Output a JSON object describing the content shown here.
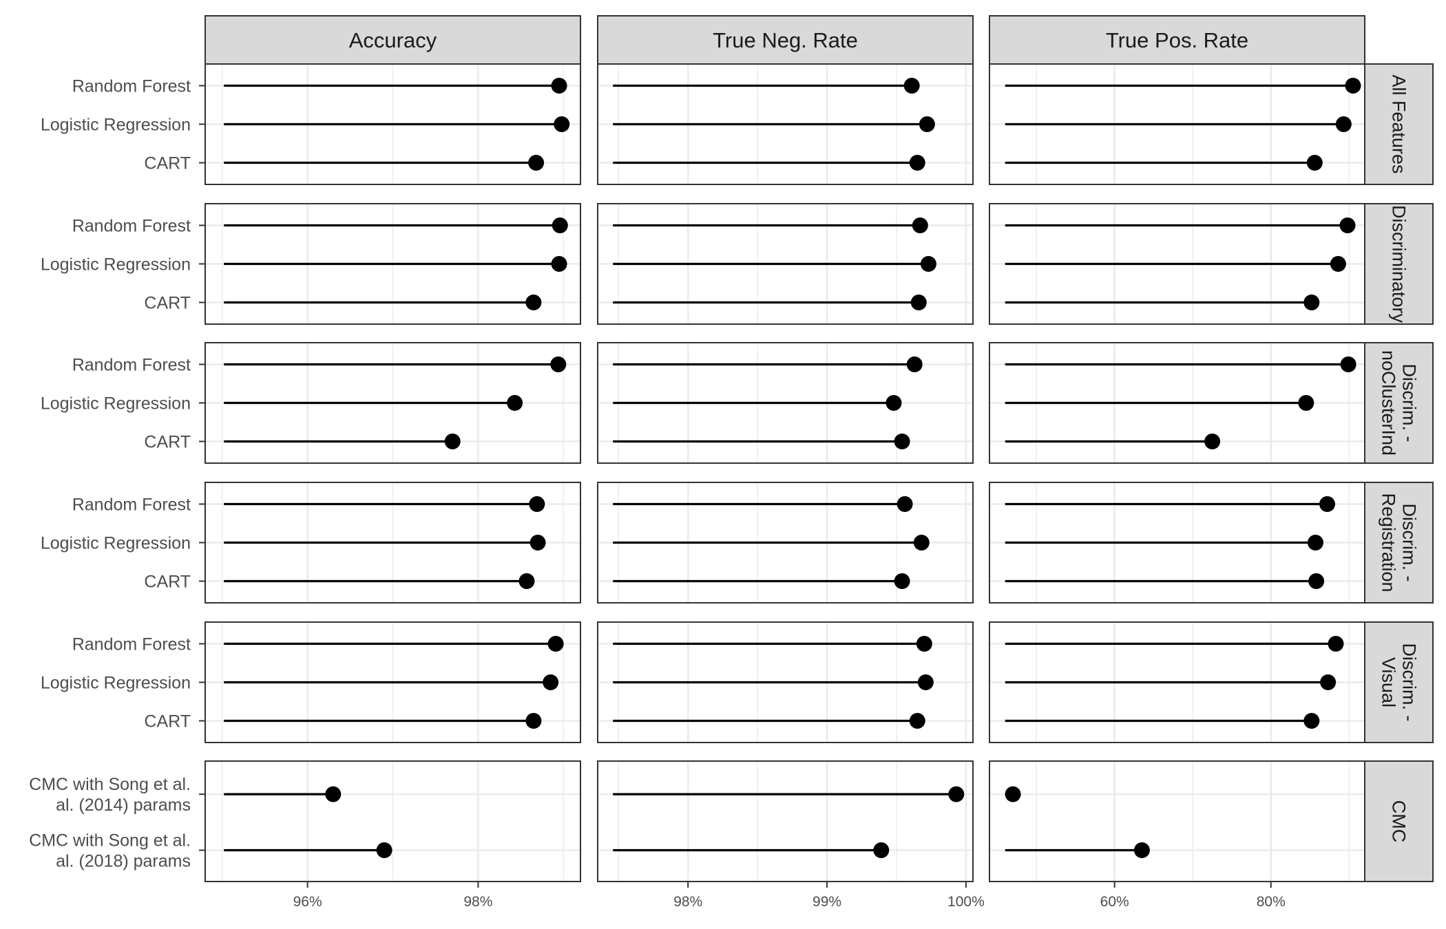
{
  "chart_data": {
    "type": "lollipop",
    "title": "",
    "xlabel": "",
    "ylabel": "",
    "columns": [
      {
        "name": "Accuracy",
        "xlim": [
          94.8,
          99.2
        ],
        "ticks": [
          96,
          98
        ],
        "tick_labels": [
          "96%",
          "98%"
        ],
        "baseline": 95.02,
        "grid": [
          95.0,
          96.0,
          97.0,
          98.0,
          99.0
        ]
      },
      {
        "name": "True Neg. Rate",
        "xlim": [
          97.35,
          100.05
        ],
        "ticks": [
          98,
          99,
          100
        ],
        "tick_labels": [
          "98%",
          "99%",
          "100%"
        ],
        "baseline": 97.46,
        "grid": [
          97.5,
          98.0,
          98.5,
          99.0,
          99.5,
          100.0
        ]
      },
      {
        "name": "True Pos. Rate",
        "xlim": [
          44.0,
          92.0
        ],
        "ticks": [
          60,
          80
        ],
        "tick_labels": [
          "60%",
          "80%"
        ],
        "baseline": 46.0,
        "grid": [
          50,
          60,
          70,
          80,
          90
        ]
      }
    ],
    "rows": [
      {
        "name": "All Features",
        "label_lines": [
          "All Features"
        ],
        "models": [
          "Random Forest",
          "Logistic Regression",
          "CART"
        ],
        "values": [
          [
            98.95,
            98.98,
            98.68
          ],
          [
            99.61,
            99.72,
            99.65
          ],
          [
            90.5,
            89.3,
            85.6
          ]
        ]
      },
      {
        "name": "Discriminatory",
        "label_lines": [
          "Discriminatory"
        ],
        "models": [
          "Random Forest",
          "Logistic Regression",
          "CART"
        ],
        "values": [
          [
            98.96,
            98.95,
            98.65
          ],
          [
            99.67,
            99.73,
            99.66
          ],
          [
            89.8,
            88.6,
            85.2
          ]
        ]
      },
      {
        "name": "Discrim. - noClusterInd",
        "label_lines": [
          "Discrim. -",
          "noClusterInd"
        ],
        "models": [
          "Random Forest",
          "Logistic Regression",
          "CART"
        ],
        "values": [
          [
            98.94,
            98.43,
            97.7
          ],
          [
            99.63,
            99.48,
            99.54
          ],
          [
            89.9,
            84.5,
            72.5
          ]
        ]
      },
      {
        "name": "Discrim. - Registration",
        "label_lines": [
          "Discrim. -",
          "Registration"
        ],
        "models": [
          "Random Forest",
          "Logistic Regression",
          "CART"
        ],
        "values": [
          [
            98.69,
            98.7,
            98.57
          ],
          [
            99.56,
            99.68,
            99.54
          ],
          [
            87.2,
            85.7,
            85.8
          ]
        ]
      },
      {
        "name": "Discrim. - Visual",
        "label_lines": [
          "Discrim. -",
          "Visual"
        ],
        "models": [
          "Random Forest",
          "Logistic Regression",
          "CART"
        ],
        "values": [
          [
            98.91,
            98.85,
            98.65
          ],
          [
            99.7,
            99.71,
            99.65
          ],
          [
            88.3,
            87.3,
            85.2
          ]
        ]
      },
      {
        "name": "CMC",
        "label_lines": [
          "CMC"
        ],
        "models": [
          "CMC with Song et al. (2014) params",
          "CMC with Song et al. (2018) params"
        ],
        "model_lines": [
          [
            "CMC with Song et al.",
            "al. (2014) params"
          ],
          [
            "CMC with Song et al.",
            "al. (2018) params"
          ]
        ],
        "values": [
          [
            96.3,
            96.9
          ],
          [
            99.93,
            99.39
          ],
          [
            47.0,
            63.5
          ]
        ]
      }
    ],
    "grid": true,
    "legend": "none",
    "point_color": "#000000",
    "line_color": "#000000",
    "strip_fill": "#d9d9d9"
  }
}
